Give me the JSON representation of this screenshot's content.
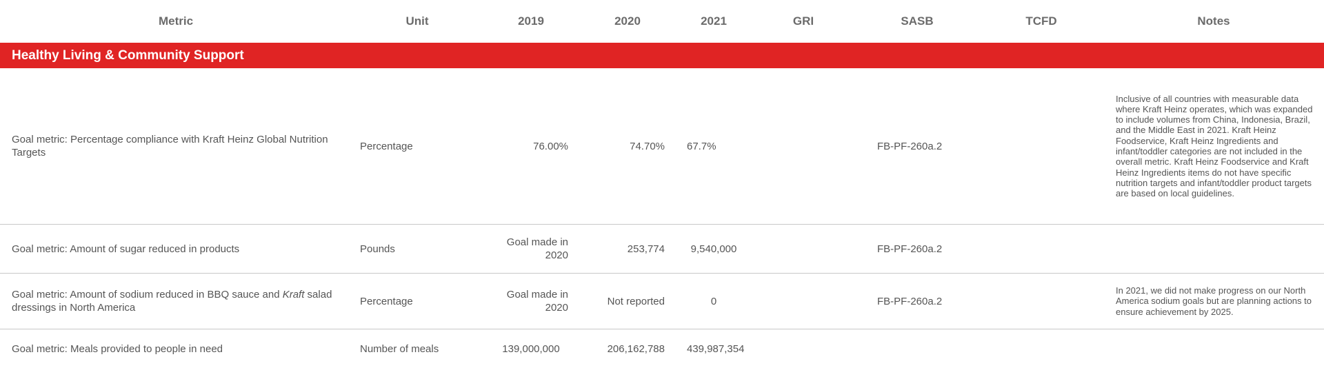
{
  "header": {
    "metric": "Metric",
    "unit": "Unit",
    "y2019": "2019",
    "y2020": "2020",
    "y2021": "2021",
    "gri": "GRI",
    "sasb": "SASB",
    "tcfd": "TCFD",
    "notes": "Notes"
  },
  "section": {
    "title": "Healthy Living & Community Support"
  },
  "rows": [
    {
      "metric": "Goal metric: Percentage compliance with Kraft Heinz Global Nutrition Targets",
      "unit": "Percentage",
      "y2019": "76.00%",
      "y2020": "74.70%",
      "y2021": "67.7%",
      "gri": "",
      "sasb": "FB-PF-260a.2",
      "tcfd": "",
      "notes": "Inclusive of all countries with measurable data where Kraft Heinz operates, which was expanded to include volumes from China, Indonesia, Brazil, and the Middle East in 2021. Kraft Heinz Foodservice, Kraft Heinz Ingredients and infant/toddler categories are not included in the overall metric. Kraft Heinz Foodservice and Kraft Heinz Ingredients items do not have specific nutrition targets and infant/toddler product targets are based on local guidelines."
    },
    {
      "metric": "Goal metric: Amount of sugar reduced in products",
      "unit": "Pounds",
      "y2019": "Goal made in 2020",
      "y2020": "253,774",
      "y2021": "9,540,000",
      "gri": "",
      "sasb": "FB-PF-260a.2",
      "tcfd": "",
      "notes": ""
    },
    {
      "metric_pre": "Goal metric: Amount of sodium reduced in BBQ sauce and ",
      "metric_brand": "Kraft",
      "metric_post": " salad dressings in North America",
      "unit": "Percentage",
      "y2019": "Goal made in 2020",
      "y2020": "Not reported",
      "y2021": "0",
      "gri": "",
      "sasb": "FB-PF-260a.2",
      "tcfd": "",
      "notes": "In 2021, we did not make progress on our North America sodium goals but are planning actions to ensure achievement by 2025."
    },
    {
      "metric": "Goal metric: Meals provided to people in need",
      "unit": "Number of meals",
      "y2019": "139,000,000",
      "y2020": "206,162,788",
      "y2021": "439,987,354",
      "gri": "",
      "sasb": "",
      "tcfd": "",
      "notes": ""
    }
  ]
}
